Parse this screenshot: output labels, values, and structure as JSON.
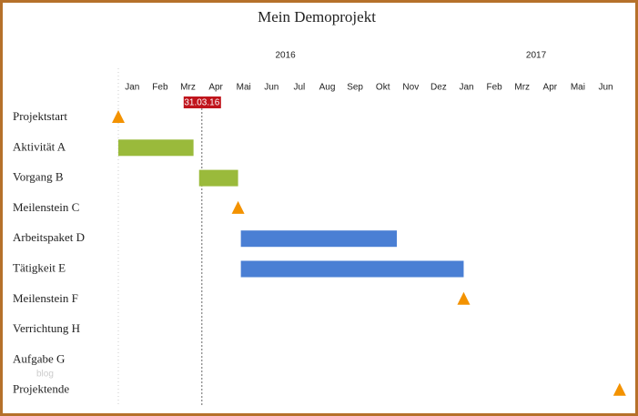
{
  "chart_data": {
    "type": "gantt",
    "title": "Mein Demoprojekt",
    "categories": [
      "Jan",
      "Feb",
      "Mrz",
      "Apr",
      "Mai",
      "Jun",
      "Jul",
      "Aug",
      "Sep",
      "Okt",
      "Nov",
      "Dez",
      "Jan",
      "Feb",
      "Mrz",
      "Apr",
      "Mai",
      "Jun"
    ],
    "years": [
      {
        "label": "2016",
        "start": 0,
        "end": 12
      },
      {
        "label": "2017",
        "start": 12,
        "end": 18
      }
    ],
    "xlim": [
      0,
      18.3
    ],
    "today": {
      "value": 3,
      "label": "31.03.16",
      "color": "#c0141c"
    },
    "milestone_color": "#f39200",
    "rows": [
      {
        "name": "Projektstart",
        "milestone": 0
      },
      {
        "name": "Aktivität A",
        "start": 0,
        "end": 2.7,
        "color": "#9aba3b"
      },
      {
        "name": "Vorgang B",
        "start": 2.9,
        "end": 4.3,
        "color": "#9aba3b"
      },
      {
        "name": "Meilenstein C",
        "milestone": 4.3
      },
      {
        "name": "Arbeitspaket D",
        "start": 4.4,
        "end": 10,
        "color": "#4a7fd4"
      },
      {
        "name": "Tätigkeit E",
        "start": 4.4,
        "end": 12.4,
        "color": "#4a7fd4"
      },
      {
        "name": "Meilenstein F",
        "milestone": 12.4
      },
      {
        "name": "Verrichtung H"
      },
      {
        "name": "Aufgabe G"
      },
      {
        "name": "Projektende",
        "milestone": 18
      }
    ],
    "watermark": "blog"
  }
}
